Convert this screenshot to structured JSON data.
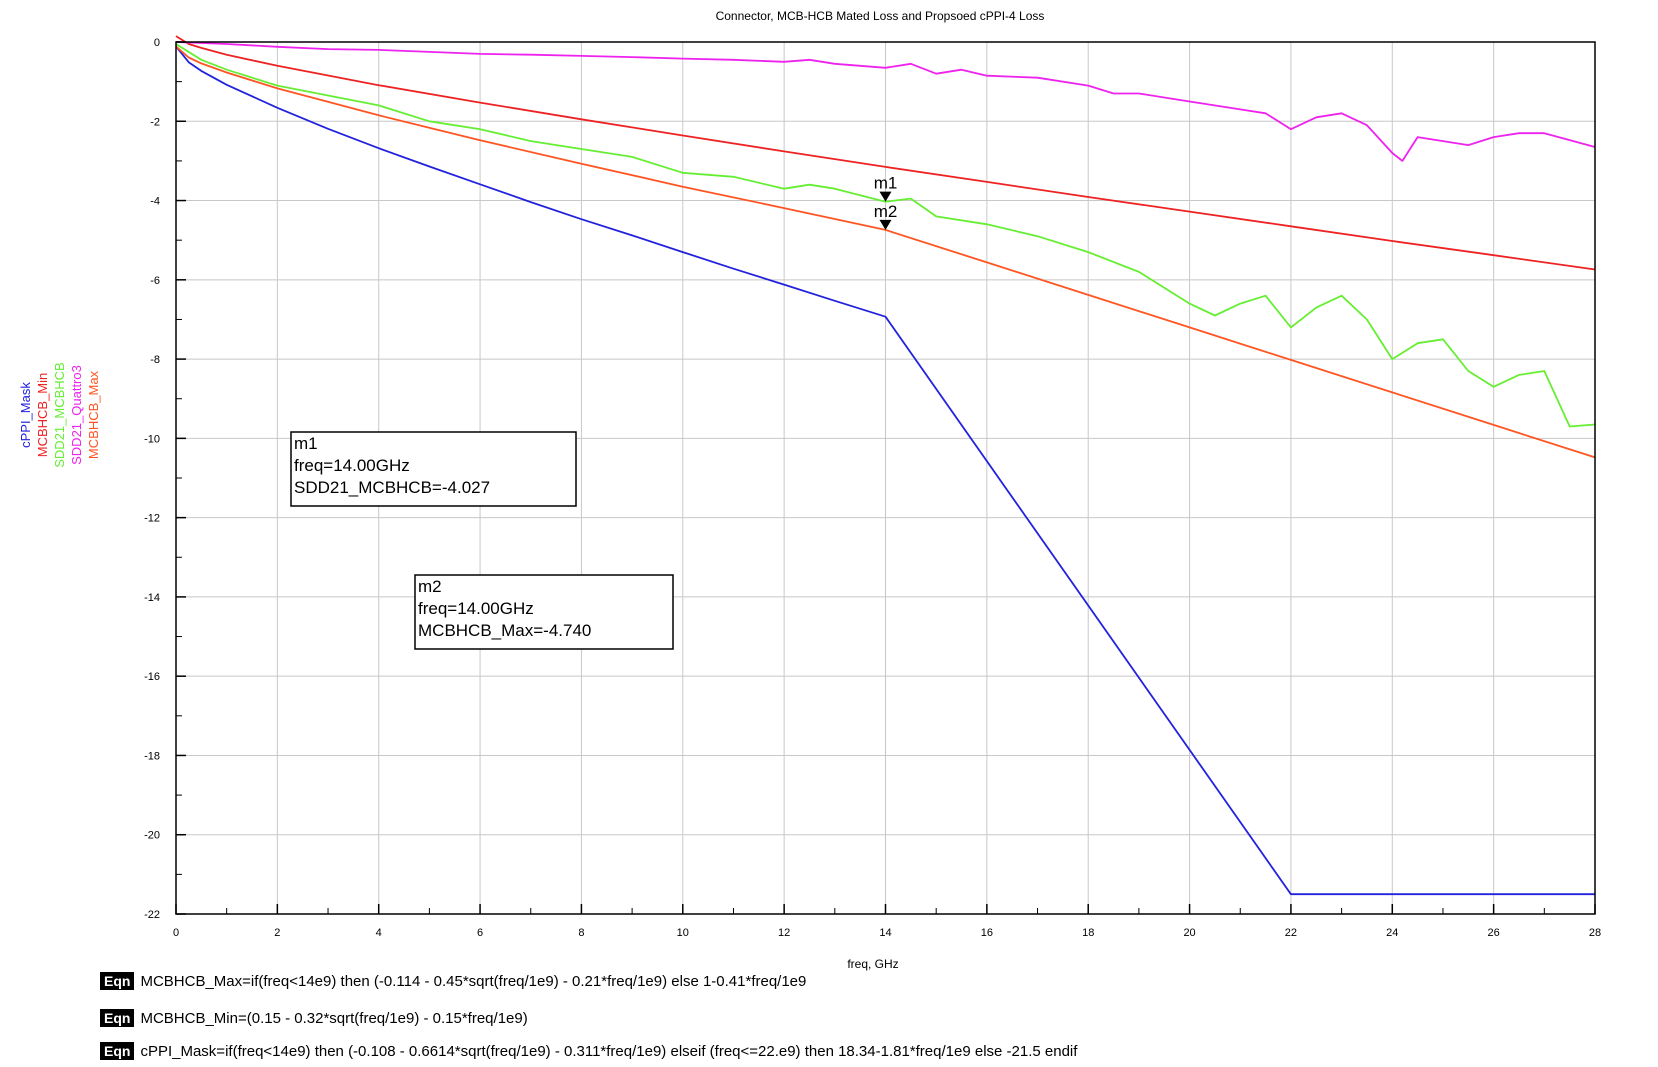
{
  "chart_data": {
    "type": "line",
    "title": "Connector, MCB-HCB Mated Loss and Propsoed cPPI-4 Loss",
    "xlabel": "freq, GHz",
    "ylabel": "",
    "xlim": [
      0,
      28
    ],
    "ylim": [
      -22,
      0
    ],
    "x_ticks": [
      0,
      2,
      4,
      6,
      8,
      10,
      12,
      14,
      16,
      18,
      20,
      22,
      24,
      26,
      28
    ],
    "y_ticks": [
      0,
      -2,
      -4,
      -6,
      -8,
      -10,
      -12,
      -14,
      -16,
      -18,
      -20,
      -22
    ],
    "grid": true,
    "legend_placement": "left, vertical",
    "series": [
      {
        "name": "cPPI_Mask",
        "color": "#2222dd",
        "x": [
          0,
          0.25,
          0.5,
          1,
          2,
          3,
          4,
          5,
          6,
          7,
          8,
          9,
          10,
          11,
          12,
          13,
          14,
          22,
          28
        ],
        "y": [
          -0.11,
          -0.51,
          -0.73,
          -1.08,
          -1.66,
          -2.19,
          -2.68,
          -3.14,
          -3.59,
          -4.04,
          -4.47,
          -4.88,
          -5.3,
          -5.72,
          -6.12,
          -6.53,
          -6.93,
          -21.5,
          -21.5
        ]
      },
      {
        "name": "MCBHCB_Min",
        "color": "#ee2222",
        "x": [
          0,
          0.25,
          0.5,
          1,
          2,
          4,
          6,
          8,
          10,
          12,
          14,
          16,
          18,
          20,
          22,
          24,
          26,
          28
        ],
        "y": [
          0.15,
          -0.05,
          -0.15,
          -0.32,
          -0.6,
          -1.09,
          -1.53,
          -1.95,
          -2.36,
          -2.76,
          -3.15,
          -3.53,
          -3.91,
          -4.28,
          -4.65,
          -5.02,
          -5.38,
          -5.74
        ]
      },
      {
        "name": "SDD21_MCBHCB",
        "color": "#66ee33",
        "x": [
          0,
          0.5,
          1,
          2,
          3,
          4,
          5,
          6,
          7,
          8,
          9,
          10,
          11,
          12,
          12.5,
          13,
          14,
          14.5,
          15,
          16,
          17,
          18,
          19,
          20,
          20.5,
          21,
          21.5,
          22,
          22.5,
          23,
          23.5,
          24,
          24.5,
          25,
          25.5,
          26,
          26.5,
          27,
          27.5,
          28
        ],
        "y": [
          -0.05,
          -0.45,
          -0.7,
          -1.1,
          -1.35,
          -1.6,
          -2.0,
          -2.2,
          -2.5,
          -2.7,
          -2.9,
          -3.3,
          -3.4,
          -3.7,
          -3.6,
          -3.7,
          -4.03,
          -3.95,
          -4.4,
          -4.6,
          -4.9,
          -5.3,
          -5.8,
          -6.6,
          -6.9,
          -6.6,
          -6.4,
          -7.2,
          -6.7,
          -6.4,
          -7.0,
          -8.0,
          -7.6,
          -7.5,
          -8.3,
          -8.7,
          -8.4,
          -8.3,
          -9.7,
          -9.65
        ]
      },
      {
        "name": "SDD21_Quattro3",
        "color": "#ee22ee",
        "x": [
          0,
          1,
          2,
          3,
          4,
          5,
          6,
          7,
          8,
          9,
          10,
          11,
          12,
          12.5,
          13,
          13.5,
          14,
          14.5,
          15,
          15.5,
          16,
          17,
          18,
          18.5,
          19,
          20,
          21,
          21.5,
          22,
          22.5,
          23,
          23.5,
          24,
          24.2,
          24.5,
          25,
          25.5,
          26,
          26.5,
          27,
          28
        ],
        "y": [
          0,
          -0.05,
          -0.12,
          -0.18,
          -0.2,
          -0.25,
          -0.3,
          -0.32,
          -0.35,
          -0.38,
          -0.42,
          -0.45,
          -0.5,
          -0.45,
          -0.55,
          -0.6,
          -0.65,
          -0.55,
          -0.8,
          -0.7,
          -0.85,
          -0.9,
          -1.1,
          -1.3,
          -1.3,
          -1.5,
          -1.7,
          -1.8,
          -2.2,
          -1.9,
          -1.8,
          -2.1,
          -2.8,
          -3.0,
          -2.4,
          -2.5,
          -2.6,
          -2.4,
          -2.3,
          -2.3,
          -2.65
        ]
      },
      {
        "name": "MCBHCB_Max",
        "color": "#ff5522",
        "x": [
          0,
          0.25,
          0.5,
          1,
          2,
          4,
          6,
          8,
          10,
          12,
          14,
          16,
          18,
          20,
          22,
          24,
          26,
          28
        ],
        "y": [
          -0.11,
          -0.39,
          -0.54,
          -0.77,
          -1.17,
          -1.85,
          -2.48,
          -3.07,
          -3.65,
          -4.19,
          -4.74,
          -5.56,
          -6.38,
          -7.2,
          -8.02,
          -8.84,
          -9.66,
          -10.48
        ]
      }
    ],
    "markers": [
      {
        "name": "m1",
        "x": 14,
        "y": -4.027,
        "lines": [
          "m1",
          "freq=14.00GHz",
          "SDD21_MCBHCB=-4.027"
        ]
      },
      {
        "name": "m2",
        "x": 14,
        "y": -4.74,
        "lines": [
          "m2",
          "freq=14.00GHz",
          "MCBHCB_Max=-4.740"
        ]
      }
    ]
  },
  "equations": [
    {
      "badge": "Eqn",
      "text": "MCBHCB_Max=if(freq<14e9) then (-0.114 - 0.45*sqrt(freq/1e9) - 0.21*freq/1e9) else 1-0.41*freq/1e9"
    },
    {
      "badge": "Eqn",
      "text": "MCBHCB_Min=(0.15 - 0.32*sqrt(freq/1e9) - 0.15*freq/1e9)"
    },
    {
      "badge": "Eqn",
      "text": "cPPI_Mask=if(freq<14e9) then (-0.108 - 0.6614*sqrt(freq/1e9) - 0.311*freq/1e9) elseif (freq<=22.e9) then 18.34-1.81*freq/1e9 else -21.5 endif"
    }
  ]
}
